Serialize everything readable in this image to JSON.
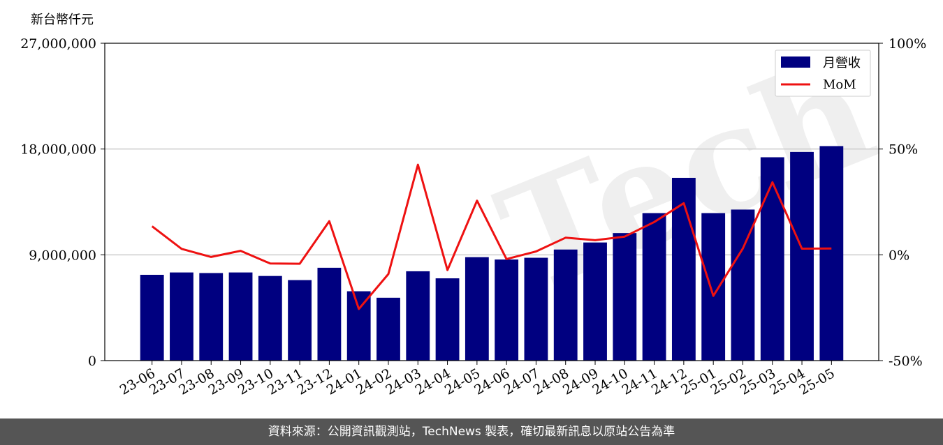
{
  "chart_data": {
    "type": "bar",
    "ylabel": "新台幣仟元",
    "categories": [
      "23-06",
      "23-07",
      "23-08",
      "23-09",
      "23-10",
      "23-11",
      "23-12",
      "24-01",
      "24-02",
      "24-03",
      "24-04",
      "24-05",
      "24-06",
      "24-07",
      "24-08",
      "24-09",
      "24-10",
      "24-11",
      "24-12",
      "25-01",
      "25-02",
      "25-03",
      "25-04",
      "25-05"
    ],
    "series": [
      {
        "name": "月營收",
        "axis": "left",
        "color": "#000080",
        "values": [
          7300000,
          7500000,
          7450000,
          7500000,
          7200000,
          6850000,
          7900000,
          5900000,
          5350000,
          7600000,
          7000000,
          8800000,
          8600000,
          8750000,
          9450000,
          10050000,
          10850000,
          12550000,
          15550000,
          12550000,
          12850000,
          17300000,
          17750000,
          18250000
        ]
      },
      {
        "name": "MoM",
        "axis": "right",
        "color": "#ee1111",
        "values": [
          13.5,
          2.8,
          -1.0,
          1.9,
          -4.1,
          -4.2,
          15.9,
          -25.6,
          -9.1,
          42.6,
          -7.2,
          25.6,
          -2.0,
          1.6,
          8.1,
          6.9,
          8.6,
          15.5,
          24.4,
          -19.4,
          3.0,
          34.3,
          2.9,
          3.0
        ]
      }
    ],
    "ylim": [
      0,
      27000000
    ],
    "yticks": [
      "0",
      "9,000,000",
      "18,000,000",
      "27,000,000"
    ],
    "y2lim": [
      -50,
      100
    ],
    "y2ticks": [
      "-50%",
      "0%",
      "50%",
      "100%"
    ],
    "grid": "horizontal",
    "legend_position": "top-right",
    "watermark": "TechNews"
  },
  "footer": {
    "text": "資料來源：公開資訊觀測站，TechNews 製表，確切最新訊息以原站公告為準"
  }
}
